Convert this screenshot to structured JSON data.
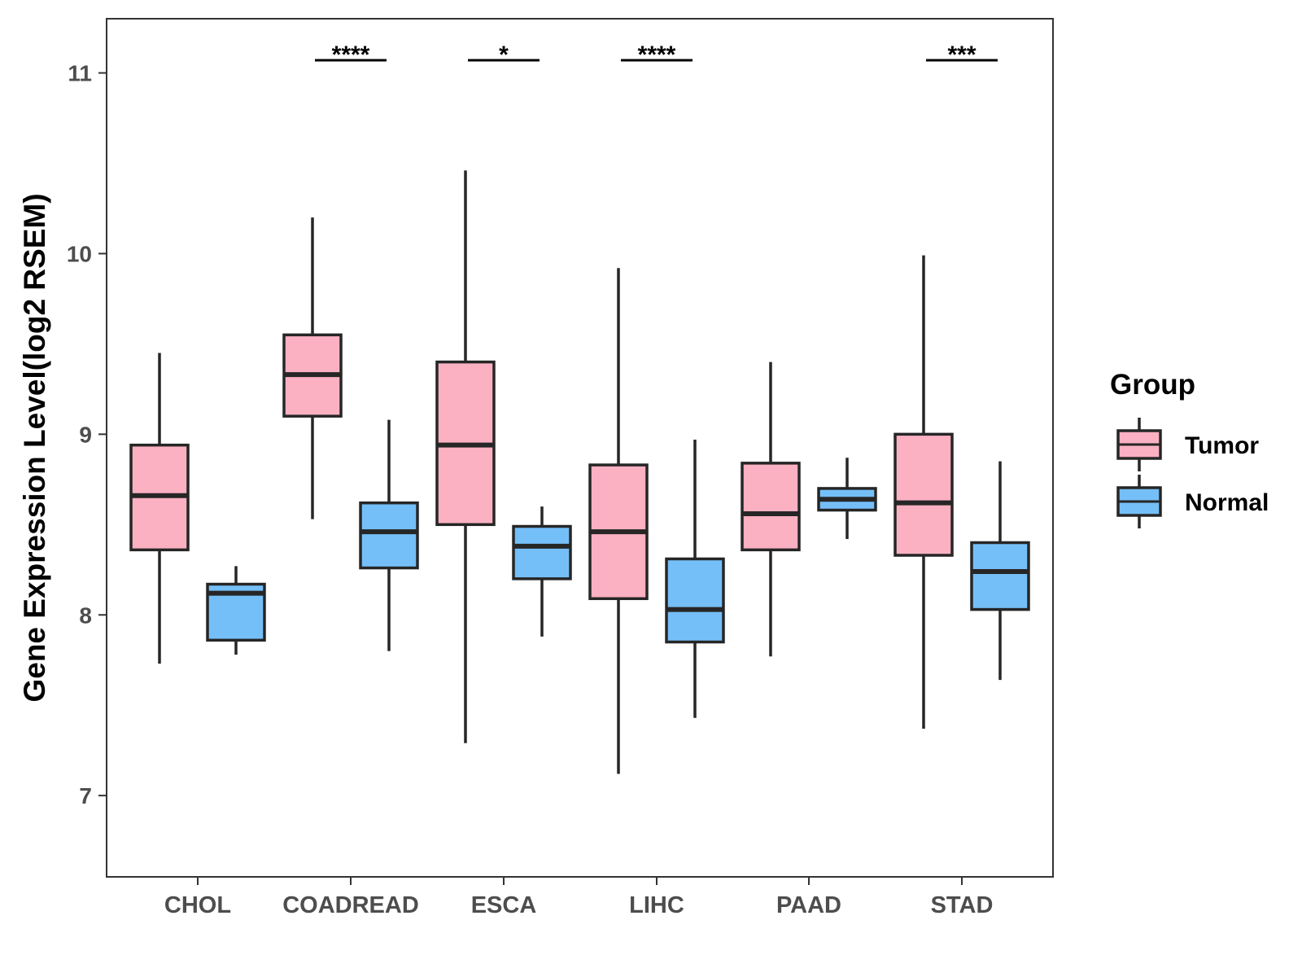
{
  "chart_data": {
    "type": "boxplot",
    "title": "",
    "xlabel": "",
    "ylabel": "Gene Expression Level(log2 RSEM)",
    "ylim": [
      6.55,
      11.3
    ],
    "y_ticks": [
      7,
      8,
      9,
      10,
      11
    ],
    "grid": false,
    "legend": {
      "title": "Group",
      "position": "right",
      "entries": [
        {
          "name": "Tumor",
          "color": "#FBB1C2"
        },
        {
          "name": "Normal",
          "color": "#75BFF8"
        }
      ]
    },
    "categories": [
      "CHOL",
      "COADREAD",
      "ESCA",
      "LIHC",
      "PAAD",
      "STAD"
    ],
    "series": [
      {
        "name": "Tumor",
        "color": "#FBB1C2",
        "boxes": [
          {
            "whisker_low": 7.73,
            "q1": 8.36,
            "median": 8.66,
            "q3": 8.94,
            "whisker_high": 9.45
          },
          {
            "whisker_low": 8.53,
            "q1": 9.1,
            "median": 9.33,
            "q3": 9.55,
            "whisker_high": 10.2
          },
          {
            "whisker_low": 7.29,
            "q1": 8.5,
            "median": 8.94,
            "q3": 9.4,
            "whisker_high": 10.46
          },
          {
            "whisker_low": 7.12,
            "q1": 8.09,
            "median": 8.46,
            "q3": 8.83,
            "whisker_high": 9.92
          },
          {
            "whisker_low": 7.77,
            "q1": 8.36,
            "median": 8.56,
            "q3": 8.84,
            "whisker_high": 9.4
          },
          {
            "whisker_low": 7.37,
            "q1": 8.33,
            "median": 8.62,
            "q3": 9.0,
            "whisker_high": 9.99
          }
        ]
      },
      {
        "name": "Normal",
        "color": "#75BFF8",
        "boxes": [
          {
            "whisker_low": 7.78,
            "q1": 7.86,
            "median": 8.12,
            "q3": 8.17,
            "whisker_high": 8.27
          },
          {
            "whisker_low": 7.8,
            "q1": 8.26,
            "median": 8.46,
            "q3": 8.62,
            "whisker_high": 9.08
          },
          {
            "whisker_low": 7.88,
            "q1": 8.2,
            "median": 8.38,
            "q3": 8.49,
            "whisker_high": 8.6
          },
          {
            "whisker_low": 7.43,
            "q1": 7.85,
            "median": 8.03,
            "q3": 8.31,
            "whisker_high": 8.97
          },
          {
            "whisker_low": 8.42,
            "q1": 8.58,
            "median": 8.64,
            "q3": 8.7,
            "whisker_high": 8.87
          },
          {
            "whisker_low": 7.64,
            "q1": 8.03,
            "median": 8.24,
            "q3": 8.4,
            "whisker_high": 8.85
          }
        ]
      }
    ],
    "significance": [
      {
        "category": "COADREAD",
        "label": "****",
        "y": 11.07
      },
      {
        "category": "ESCA",
        "label": "*",
        "y": 11.07
      },
      {
        "category": "LIHC",
        "label": "****",
        "y": 11.07
      },
      {
        "category": "STAD",
        "label": "***",
        "y": 11.07
      }
    ]
  }
}
